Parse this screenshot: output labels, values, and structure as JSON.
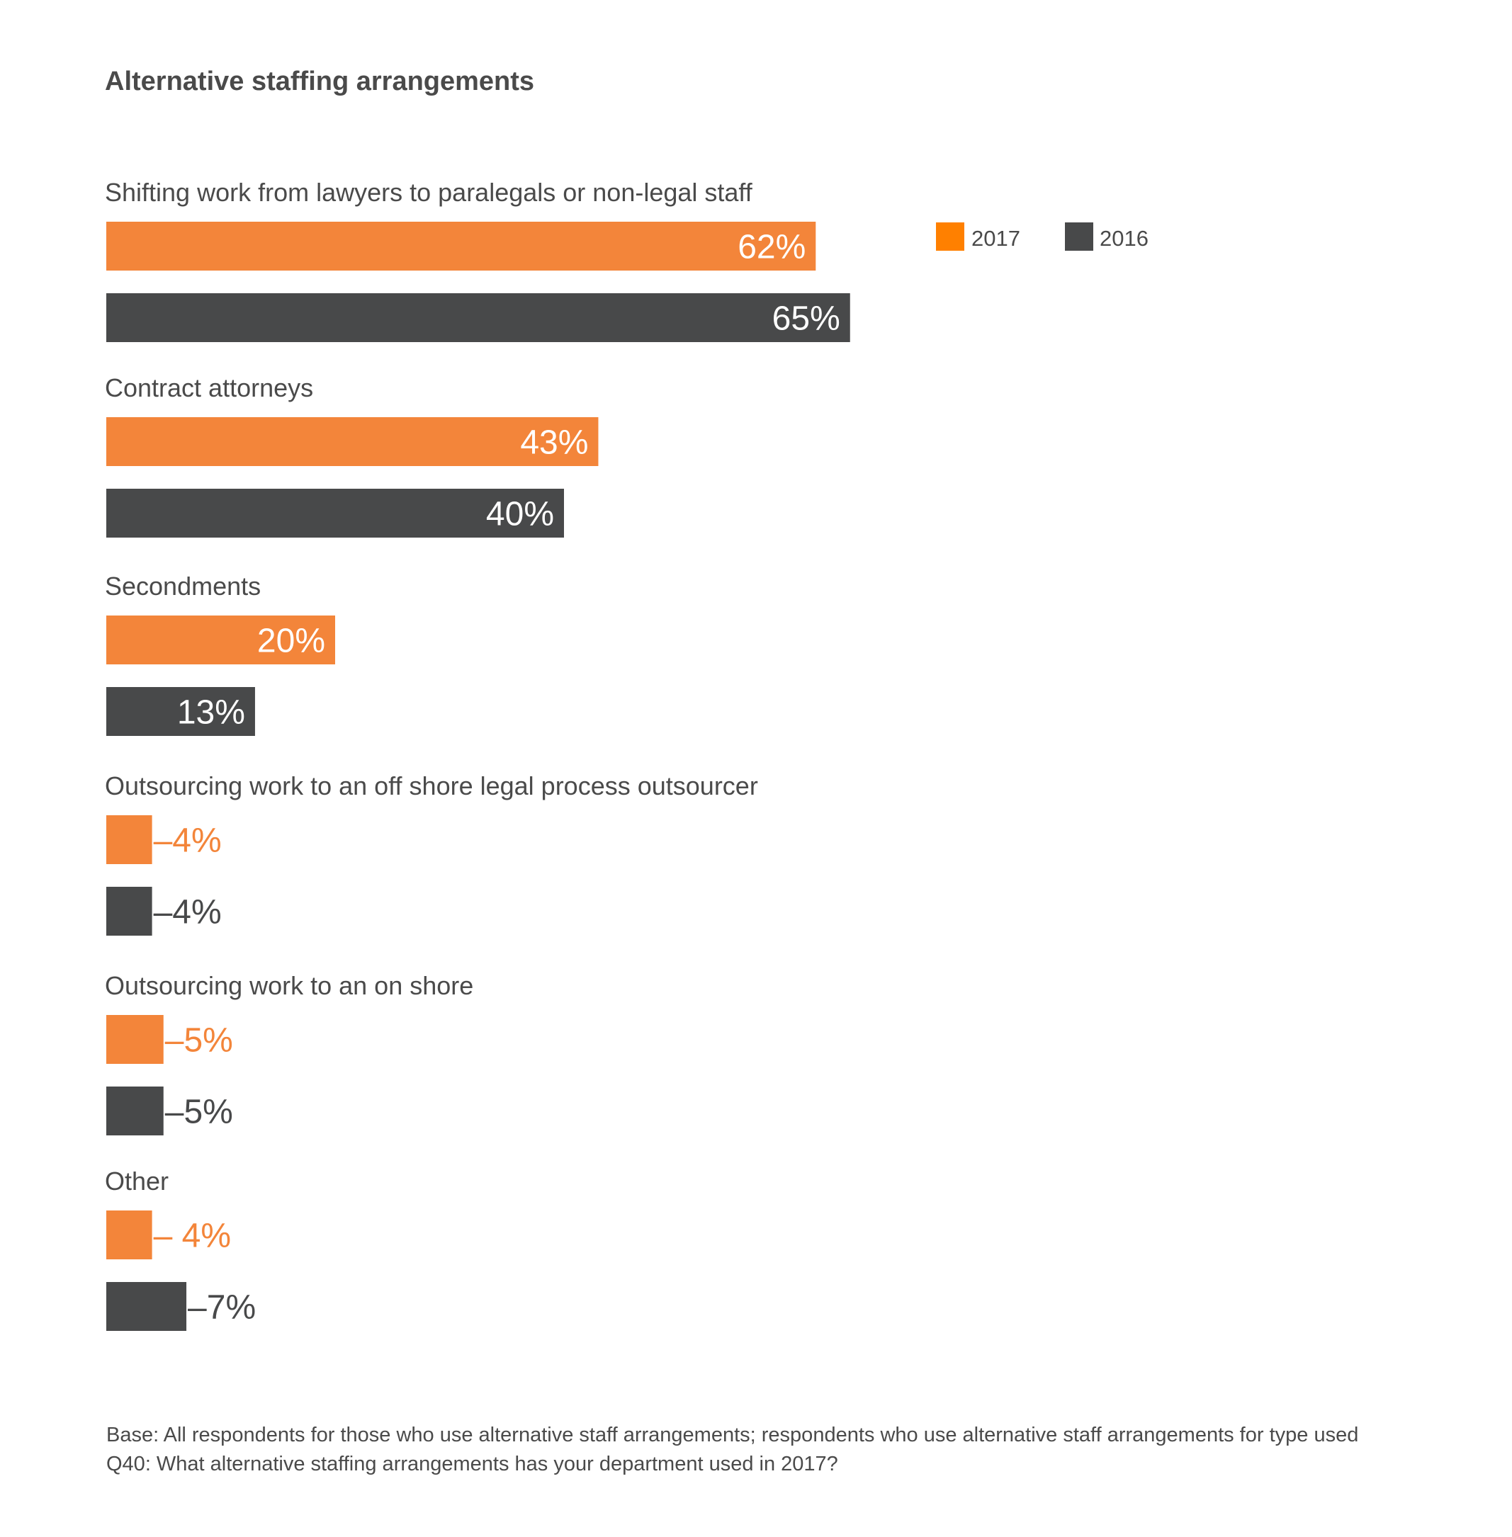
{
  "colors": {
    "s2017": "#F3853A",
    "s2016": "#48494A",
    "legend2017": "#FF8000",
    "text": "#4a4a4a"
  },
  "chart_data": {
    "type": "bar",
    "orientation": "horizontal",
    "title": "Alternative staffing arrangements",
    "categories": [
      "Shifting work from lawyers to paralegals or non-legal staff",
      "Contract attorneys",
      "Secondments",
      "Outsourcing work to an off shore legal process outsourcer",
      "Outsourcing work to an on shore",
      "Other"
    ],
    "series": [
      {
        "name": "2017",
        "values": [
          62,
          43,
          20,
          4,
          5,
          4
        ],
        "labels": [
          "62%",
          "43%",
          "20%",
          "–4%",
          "–5%",
          "– 4%"
        ]
      },
      {
        "name": "2016",
        "values": [
          65,
          40,
          13,
          4,
          5,
          7
        ],
        "labels": [
          "65%",
          "40%",
          "13%",
          "–4%",
          "–5%",
          "–7%"
        ]
      }
    ],
    "legend": [
      "2017",
      "2016"
    ],
    "legend_position": "top-right",
    "unit": "%",
    "xlim": [
      0,
      100
    ],
    "grid": false
  },
  "notes": {
    "base": "Base: All respondents for those who use alternative staff arrangements; respondents who use alternative staff arrangements for type used",
    "question": "Q40: What alternative staffing arrangements has your department used in 2017?"
  }
}
